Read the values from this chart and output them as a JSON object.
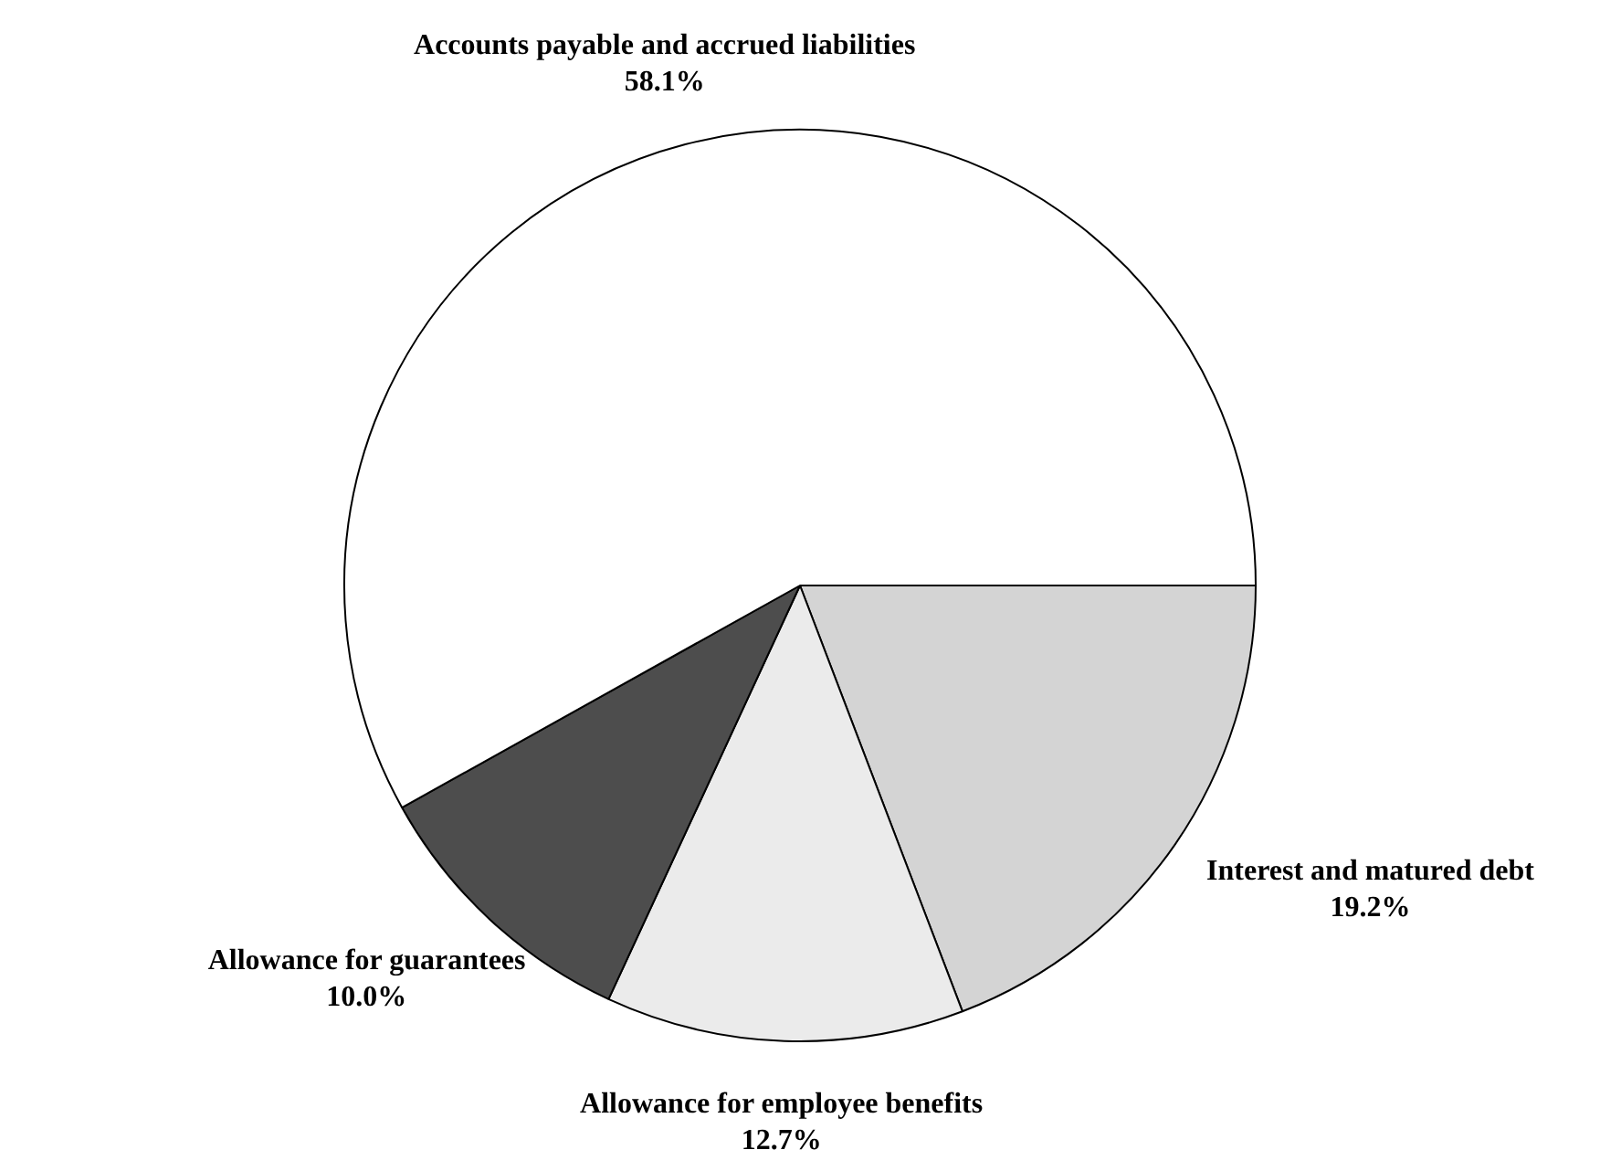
{
  "chart_data": {
    "type": "pie",
    "categories": [
      "Interest and matured debt",
      "Allowance for employee benefits",
      "Allowance for guarantees",
      "Accounts payable and accrued liabilities"
    ],
    "values": [
      19.2,
      12.7,
      10.0,
      58.1
    ],
    "colors": [
      "#d4d4d4",
      "#ebebeb",
      "#4d4d4d",
      "#ffffff"
    ],
    "value_labels": [
      "19.2%",
      "12.7%",
      "10.0%",
      "58.1%"
    ],
    "legend": false
  }
}
